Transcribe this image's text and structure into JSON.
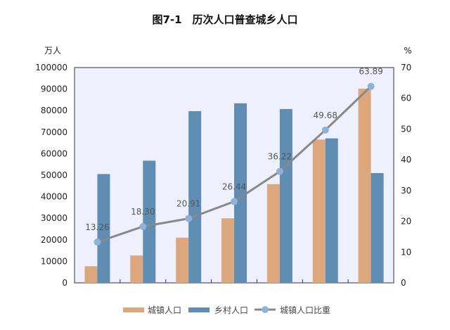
{
  "chart_data": {
    "type": "bar",
    "title": "图7-1　历次人口普查城乡人口",
    "ylabel_left": "万人",
    "ylabel_right": "%",
    "ylim_left": [
      0,
      100000
    ],
    "ylim_right": [
      0,
      70
    ],
    "left_ticks": [
      "0",
      "10000",
      "20000",
      "30000",
      "40000",
      "50000",
      "60000",
      "70000",
      "80000",
      "90000",
      "100000"
    ],
    "right_ticks": [
      "0",
      "10",
      "20",
      "30",
      "40",
      "50",
      "60",
      "70"
    ],
    "categories": [
      "",
      "",
      "",
      "",
      "",
      "",
      ""
    ],
    "series": [
      {
        "name": "城镇人口",
        "type": "bar",
        "axis": "left",
        "color": "#dda77e",
        "values": [
          7726,
          12710,
          20991,
          29971,
          45844,
          66557,
          90199
        ]
      },
      {
        "name": "乡村人口",
        "type": "bar",
        "axis": "right_no",
        "color": "#5f8db3",
        "values": [
          50534,
          56748,
          79736,
          83397,
          80739,
          67113,
          50979
        ]
      },
      {
        "name": "城镇人口比重",
        "type": "line",
        "axis": "right",
        "color": "#888888",
        "marker_color": "#8fb0d9",
        "values": [
          13.26,
          18.3,
          20.91,
          26.44,
          36.22,
          49.68,
          63.89
        ],
        "labels": [
          "13.26",
          "18.30",
          "20.91",
          "26.44",
          "36.22",
          "49.68",
          "63.89"
        ]
      }
    ],
    "grid": false,
    "plot_background": "#eef1fd",
    "legend": "bottom"
  }
}
